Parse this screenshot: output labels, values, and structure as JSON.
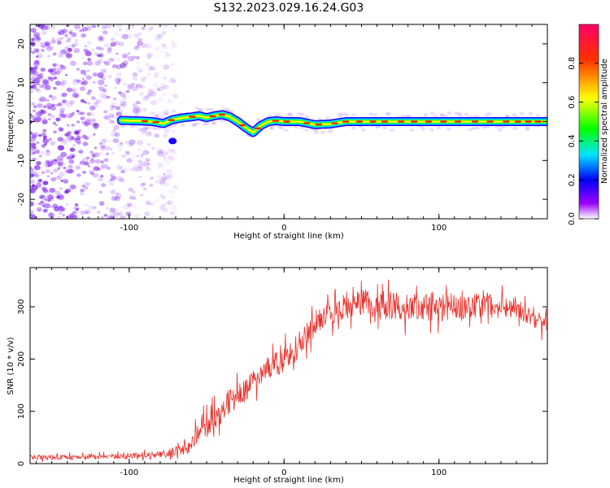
{
  "title": "S132.2023.029.16.24.G03",
  "colors": {
    "snr_line": "#e8302a",
    "frame": "#000000",
    "scatter": "#7b00e0"
  },
  "chart_data": [
    {
      "type": "heatmap",
      "xlabel": "Height of straight line (km)",
      "ylabel": "Frequency (Hz)",
      "xlim": [
        -164,
        170
      ],
      "ylim": [
        -25,
        25
      ],
      "x_ticks": [
        -100,
        0,
        100
      ],
      "x_tick_labels": [
        "-100",
        "0",
        "100"
      ],
      "y_ticks": [
        20,
        10,
        0,
        -10,
        -20
      ],
      "y_tick_labels": [
        "20",
        "10",
        "0",
        "-10",
        "-20"
      ],
      "colorbar": {
        "label": "Normalized spectral amplitude",
        "range": [
          0.0,
          1.0
        ],
        "ticks": [
          0.0,
          0.2,
          0.4,
          0.6,
          0.8
        ],
        "tick_labels": [
          "0.0",
          "0.2",
          "0.4",
          "0.6",
          "0.8"
        ],
        "colors": [
          "#ffffff",
          "#9a00ff",
          "#0000ff",
          "#00e5ff",
          "#00ff00",
          "#ffff00",
          "#ff3000",
          "#ff0066"
        ]
      },
      "ridge": {
        "x": [
          -105,
          -95,
          -85,
          -78,
          -72,
          -65,
          -60,
          -55,
          -50,
          -45,
          -40,
          -35,
          -30,
          -25,
          -20,
          -15,
          -10,
          -5,
          0,
          10,
          20,
          30,
          40,
          50,
          60,
          70,
          80,
          90,
          100,
          110,
          120,
          130,
          140,
          150,
          160,
          170
        ],
        "freq": [
          0.3,
          0.2,
          0.0,
          -0.5,
          0.5,
          1.0,
          1.2,
          1.5,
          1.0,
          1.5,
          1.8,
          1.2,
          0.0,
          -1.5,
          -2.8,
          -1.0,
          0.0,
          0.2,
          0.0,
          0.0,
          -0.8,
          -0.6,
          0.0,
          0.0,
          0.0,
          0.0,
          0.0,
          0.0,
          0.0,
          0.0,
          0.0,
          0.0,
          0.0,
          0.0,
          0.0,
          0.0
        ]
      }
    },
    {
      "type": "line",
      "xlabel": "Height of straight line (km)",
      "ylabel": "SNR (10 * v/v)",
      "xlim": [
        -164,
        170
      ],
      "ylim": [
        0,
        375
      ],
      "x_ticks": [
        -100,
        0,
        100
      ],
      "x_tick_labels": [
        "-100",
        "0",
        "100"
      ],
      "y_ticks": [
        0,
        100,
        200,
        300
      ],
      "y_tick_labels": [
        "0",
        "100",
        "200",
        "300"
      ],
      "series": [
        {
          "x": [
            -164,
            -140,
            -120,
            -100,
            -80,
            -70,
            -62,
            -55,
            -45,
            -35,
            -25,
            -15,
            -5,
            5,
            15,
            22,
            30,
            40,
            50,
            60,
            70,
            80,
            90,
            100,
            110,
            120,
            130,
            140,
            150,
            155,
            160,
            165,
            170
          ],
          "values": [
            12,
            12,
            13,
            14,
            17,
            22,
            30,
            60,
            90,
            120,
            140,
            175,
            190,
            210,
            250,
            275,
            290,
            300,
            305,
            305,
            300,
            300,
            298,
            300,
            300,
            300,
            305,
            300,
            300,
            290,
            275,
            265,
            270
          ],
          "noise_amplitude": [
            6,
            6,
            6,
            7,
            8,
            10,
            15,
            25,
            30,
            30,
            30,
            30,
            30,
            30,
            30,
            30,
            30,
            30,
            35,
            35,
            35,
            35,
            35,
            35,
            30,
            30,
            30,
            30,
            25,
            25,
            20,
            20,
            20
          ]
        }
      ]
    }
  ]
}
